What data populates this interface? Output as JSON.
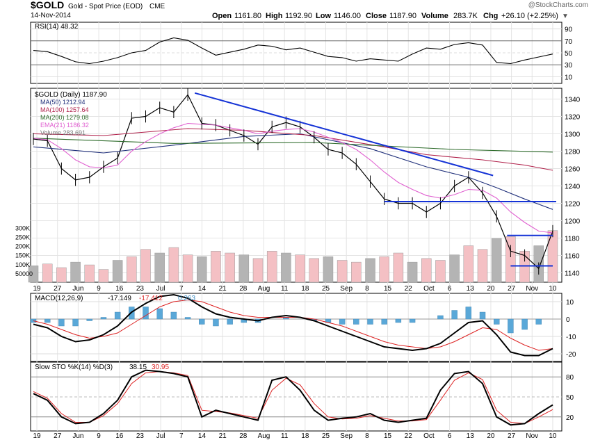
{
  "header": {
    "symbol": "$GOLD",
    "name": "Gold - Spot Price (EOD)",
    "exchange": "CME",
    "copyright": "@StockCharts.com",
    "date": "14-Nov-2014",
    "open_label": "Open",
    "open": "1161.80",
    "high_label": "High",
    "high": "1192.90",
    "low_label": "Low",
    "low": "1146.00",
    "close_label": "Close",
    "close": "1187.90",
    "volume_label": "Volume",
    "volume": "283.7K",
    "chg_label": "Chg",
    "chg": "+26.10 (+2.25%)"
  },
  "colors": {
    "price": "#000000",
    "ma50": "#1f2f7a",
    "ma100": "#b0204a",
    "ma200": "#2d6b2a",
    "ema21": "#e060d0",
    "trendline": "#1533d6",
    "vol_up": "#f4c0c4",
    "vol_down": "#b4b4b4",
    "macd_hist": "#5aa8d8",
    "rsi_fill": "#a08080"
  },
  "chart_data": [
    {
      "type": "line",
      "panel": "RSI",
      "label": "RSI(14) 48.32",
      "yticks": [
        10,
        30,
        50,
        70,
        90
      ],
      "ylim": [
        0,
        100
      ],
      "x": [
        0,
        4,
        8,
        12,
        16,
        20,
        24,
        28,
        32,
        36,
        40,
        44,
        48,
        52,
        56,
        60,
        64,
        68,
        72,
        76,
        80,
        84,
        88,
        92,
        96,
        100,
        104,
        108,
        112,
        116,
        120,
        124,
        128,
        132,
        136,
        140,
        144,
        148
      ],
      "values": [
        54,
        52,
        44,
        35,
        32,
        36,
        42,
        50,
        54,
        68,
        75,
        71,
        58,
        46,
        51,
        56,
        63,
        61,
        55,
        58,
        51,
        44,
        42,
        36,
        40,
        38,
        36,
        48,
        58,
        56,
        64,
        67,
        63,
        34,
        32,
        38,
        43,
        48
      ]
    },
    {
      "type": "line",
      "panel": "Price",
      "title": "$GOLD (Daily) 1187.90",
      "ylim": [
        1130,
        1350
      ],
      "yticks": [
        1140,
        1160,
        1180,
        1200,
        1220,
        1240,
        1260,
        1280,
        1300,
        1320,
        1340
      ],
      "x_tick_labels": [
        "19",
        "27",
        "Jun",
        "9",
        "16",
        "23",
        "Jul",
        "7",
        "14",
        "21",
        "28",
        "Aug",
        "11",
        "18",
        "25",
        "Sep",
        "8",
        "15",
        "22",
        "Oct",
        "6",
        "13",
        "20",
        "27",
        "Nov",
        "10"
      ],
      "series": [
        {
          "name": "$GOLD (Daily) 1187.90",
          "x": [
            0,
            4,
            8,
            12,
            16,
            20,
            24,
            28,
            32,
            36,
            40,
            44,
            48,
            52,
            56,
            60,
            64,
            68,
            72,
            76,
            80,
            84,
            88,
            92,
            96,
            100,
            104,
            108,
            112,
            116,
            120,
            124,
            128,
            132,
            136,
            140,
            144,
            148
          ],
          "values": [
            1294,
            1292,
            1260,
            1247,
            1250,
            1262,
            1272,
            1318,
            1320,
            1330,
            1325,
            1345,
            1312,
            1310,
            1304,
            1298,
            1288,
            1308,
            1313,
            1308,
            1296,
            1282,
            1278,
            1265,
            1245,
            1225,
            1220,
            1220,
            1210,
            1220,
            1240,
            1250,
            1232,
            1205,
            1165,
            1160,
            1145,
            1188
          ]
        },
        {
          "name": "MA(50) 1212.94",
          "x": [
            0,
            20,
            40,
            60,
            76,
            96,
            112,
            124,
            132,
            140,
            148
          ],
          "values": [
            1285,
            1278,
            1287,
            1297,
            1300,
            1283,
            1262,
            1250,
            1238,
            1225,
            1213
          ]
        },
        {
          "name": "MA(100) 1257.64",
          "x": [
            0,
            20,
            32,
            44,
            60,
            80,
            100,
            112,
            128,
            140,
            148
          ],
          "values": [
            1300,
            1298,
            1302,
            1306,
            1304,
            1298,
            1285,
            1276,
            1270,
            1264,
            1258
          ]
        },
        {
          "name": "MA(200) 1279.08",
          "x": [
            0,
            40,
            80,
            120,
            148
          ],
          "values": [
            1295,
            1289,
            1290,
            1282,
            1279
          ]
        },
        {
          "name": "EMA(21) 1186.32",
          "x": [
            0,
            4,
            8,
            12,
            16,
            20,
            24,
            28,
            32,
            36,
            40,
            44,
            48,
            52,
            56,
            60,
            64,
            68,
            72,
            76,
            80,
            84,
            88,
            92,
            96,
            100,
            104,
            108,
            112,
            116,
            120,
            124,
            128,
            132,
            136,
            140,
            144,
            148
          ],
          "values": [
            1295,
            1293,
            1283,
            1270,
            1262,
            1261,
            1264,
            1280,
            1291,
            1300,
            1307,
            1312,
            1311,
            1310,
            1307,
            1304,
            1300,
            1303,
            1305,
            1306,
            1302,
            1296,
            1290,
            1282,
            1270,
            1256,
            1244,
            1236,
            1229,
            1226,
            1230,
            1236,
            1235,
            1226,
            1210,
            1198,
            1188,
            1186
          ]
        }
      ],
      "trendlines": [
        {
          "x": [
            46,
            131
          ],
          "values": [
            1347,
            1252
          ]
        },
        {
          "x": [
            100,
            149
          ],
          "values": [
            1222,
            1222
          ]
        },
        {
          "x": [
            135,
            148
          ],
          "values": [
            1183,
            1183
          ]
        },
        {
          "x": [
            136,
            148
          ],
          "values": [
            1148,
            1148
          ]
        }
      ]
    },
    {
      "type": "bar",
      "panel": "Volume",
      "label": "Volume 283,691",
      "yticks_labels": [
        "300K",
        "250K",
        "200K",
        "150K",
        "100K",
        "50000"
      ],
      "yticks": [
        300,
        250,
        200,
        150,
        100,
        50
      ],
      "ylim": [
        0,
        320
      ],
      "x": [
        0,
        4,
        8,
        12,
        16,
        20,
        24,
        28,
        32,
        36,
        40,
        44,
        48,
        52,
        56,
        60,
        64,
        68,
        72,
        76,
        80,
        84,
        88,
        92,
        96,
        100,
        104,
        108,
        112,
        116,
        120,
        124,
        128,
        132,
        136,
        140,
        144,
        148
      ],
      "values": [
        90,
        100,
        80,
        110,
        95,
        70,
        120,
        140,
        180,
        160,
        190,
        150,
        140,
        170,
        160,
        150,
        130,
        170,
        160,
        150,
        130,
        140,
        120,
        110,
        130,
        140,
        160,
        110,
        130,
        120,
        150,
        200,
        180,
        240,
        250,
        170,
        200,
        283
      ]
    },
    {
      "type": "line",
      "panel": "MACD",
      "label": "MACD(12,26,9)",
      "values_label": [
        "-17.149",
        "-17.412",
        "0.263"
      ],
      "yticks": [
        10,
        0,
        -10,
        -20
      ],
      "ylim": [
        -24,
        14
      ],
      "x": [
        0,
        4,
        8,
        12,
        16,
        20,
        24,
        28,
        32,
        36,
        40,
        44,
        48,
        52,
        56,
        60,
        64,
        68,
        72,
        76,
        80,
        84,
        88,
        92,
        96,
        100,
        104,
        108,
        112,
        116,
        120,
        124,
        128,
        132,
        136,
        140,
        144,
        148
      ],
      "series": [
        {
          "name": "MACD",
          "values": [
            -3,
            -5,
            -10,
            -13,
            -12,
            -9,
            -4,
            4,
            9,
            13,
            14,
            12,
            7,
            3,
            1,
            0,
            -1,
            1,
            2,
            1,
            -1,
            -4,
            -7,
            -10,
            -13,
            -16,
            -17,
            -18,
            -17,
            -14,
            -8,
            -2,
            -1,
            -9,
            -19,
            -21,
            -21,
            -17
          ]
        },
        {
          "name": "Signal",
          "values": [
            -1,
            -3,
            -6,
            -9,
            -11,
            -10,
            -8,
            -3,
            2,
            7,
            10,
            11,
            10,
            7,
            4,
            2,
            1,
            1,
            1,
            1,
            0,
            -2,
            -4,
            -7,
            -10,
            -13,
            -15,
            -16,
            -17,
            -16,
            -13,
            -9,
            -5,
            -6,
            -11,
            -15,
            -18,
            -17
          ]
        }
      ]
    },
    {
      "type": "line",
      "panel": "Slow STO",
      "label": "Slow STO %K(14) %D(3)",
      "values_label": [
        "38.15",
        "30.95"
      ],
      "yticks": [
        20,
        50,
        80
      ],
      "ylim": [
        0,
        100
      ],
      "x": [
        0,
        4,
        8,
        12,
        16,
        20,
        24,
        28,
        32,
        36,
        40,
        44,
        48,
        52,
        56,
        60,
        64,
        68,
        72,
        76,
        80,
        84,
        88,
        92,
        96,
        100,
        104,
        108,
        112,
        116,
        120,
        124,
        128,
        132,
        136,
        140,
        144,
        148
      ],
      "series": [
        {
          "name": "%K",
          "values": [
            55,
            45,
            20,
            10,
            12,
            25,
            45,
            80,
            90,
            88,
            85,
            80,
            20,
            30,
            25,
            20,
            15,
            75,
            80,
            60,
            30,
            15,
            18,
            20,
            25,
            15,
            12,
            15,
            18,
            60,
            85,
            88,
            70,
            20,
            8,
            10,
            25,
            38
          ]
        },
        {
          "name": "%D",
          "values": [
            58,
            48,
            25,
            12,
            12,
            22,
            40,
            70,
            86,
            88,
            86,
            82,
            30,
            28,
            26,
            22,
            18,
            60,
            78,
            68,
            40,
            20,
            17,
            18,
            22,
            18,
            14,
            14,
            16,
            45,
            75,
            86,
            76,
            30,
            12,
            10,
            20,
            31
          ]
        }
      ]
    }
  ]
}
